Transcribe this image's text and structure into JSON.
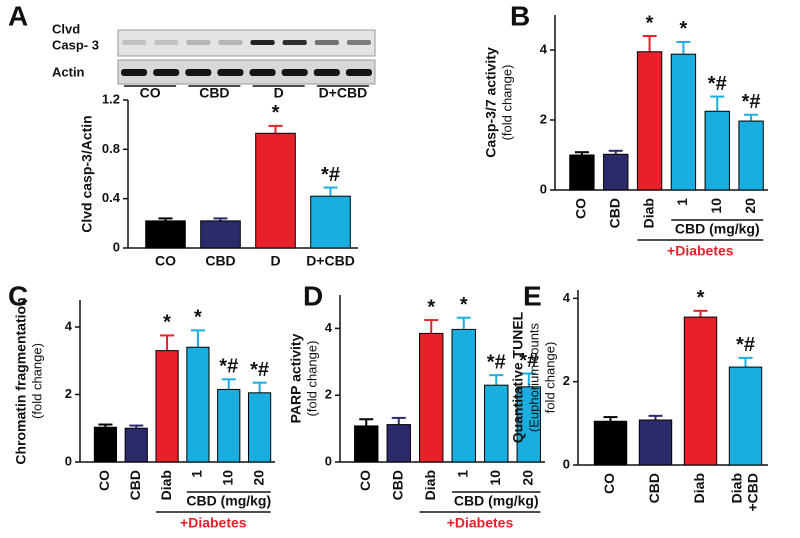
{
  "chart_data": [
    {
      "type": "bar",
      "panel": "A",
      "ylabel": [
        "Clvd casp-3/Actin"
      ],
      "blot": {
        "labels": [
          "Clvd",
          "Casp- 3",
          "Actin"
        ],
        "lanes": [
          "CO",
          "CBD",
          "D",
          "D+CBD"
        ]
      },
      "categories": [
        "CO",
        "CBD",
        "D",
        "D+CBD"
      ],
      "values": [
        0.22,
        0.22,
        0.93,
        0.42
      ],
      "errors": [
        0.02,
        0.02,
        0.06,
        0.07
      ],
      "annotations": [
        null,
        null,
        "*",
        "*#"
      ],
      "colors": [
        "#000000",
        "#2b2a6b",
        "#e8202a",
        "#1aaee0"
      ],
      "ylim": [
        0,
        1.2
      ],
      "yticks": [
        0,
        0.4,
        0.8,
        1.2
      ]
    },
    {
      "type": "bar",
      "panel": "B",
      "ylabel": [
        "Casp-3/7 activity",
        "(fold change)"
      ],
      "categories": [
        "CO",
        "CBD",
        "Diab",
        "1",
        "10",
        "20"
      ],
      "values": [
        1.0,
        1.02,
        3.95,
        3.88,
        2.25,
        1.97
      ],
      "errors": [
        0.08,
        0.1,
        0.45,
        0.35,
        0.42,
        0.18
      ],
      "annotations": [
        null,
        null,
        "*",
        "*",
        "*#",
        "*#"
      ],
      "colors": [
        "#000000",
        "#2b2a6b",
        "#e8202a",
        "#1aaee0",
        "#1aaee0",
        "#1aaee0"
      ],
      "group_label": "CBD (mg/kg)",
      "group_note": "+Diabetes",
      "ylim": [
        0,
        5
      ],
      "yticks": [
        0,
        2,
        4
      ]
    },
    {
      "type": "bar",
      "panel": "C",
      "ylabel": [
        "Chromatin fragmentation",
        "(fold change)"
      ],
      "categories": [
        "CO",
        "CBD",
        "Diab",
        "1",
        "10",
        "20"
      ],
      "values": [
        1.03,
        1.0,
        3.3,
        3.4,
        2.15,
        2.05
      ],
      "errors": [
        0.08,
        0.08,
        0.45,
        0.5,
        0.3,
        0.3
      ],
      "annotations": [
        null,
        null,
        "*",
        "*",
        "*#",
        "*#"
      ],
      "colors": [
        "#000000",
        "#2b2a6b",
        "#e8202a",
        "#1aaee0",
        "#1aaee0",
        "#1aaee0"
      ],
      "group_label": "CBD (mg/kg)",
      "group_note": "+Diabetes",
      "ylim": [
        0,
        4.8
      ],
      "yticks": [
        0,
        2,
        4
      ]
    },
    {
      "type": "bar",
      "panel": "D",
      "ylabel": [
        "PARP activity",
        "(fold change)"
      ],
      "categories": [
        "CO",
        "CBD",
        "Diab",
        "1",
        "10",
        "20"
      ],
      "values": [
        1.08,
        1.12,
        3.85,
        3.97,
        2.3,
        2.25
      ],
      "errors": [
        0.2,
        0.2,
        0.4,
        0.35,
        0.3,
        0.4
      ],
      "annotations": [
        null,
        null,
        "*",
        "*",
        "*#",
        "*#"
      ],
      "colors": [
        "#000000",
        "#2b2a6b",
        "#e8202a",
        "#1aaee0",
        "#1aaee0",
        "#1aaee0"
      ],
      "group_label": "CBD (mg/kg)",
      "group_note": "+Diabetes",
      "ylim": [
        0,
        5
      ],
      "yticks": [
        0,
        2,
        4
      ]
    },
    {
      "type": "bar",
      "panel": "E",
      "ylabel": [
        "Quantitative TUNEL",
        "(Euphorium counts",
        "fold change)"
      ],
      "categories": [
        "CO",
        "CBD",
        "Diab",
        "Diab +CBD"
      ],
      "values": [
        1.05,
        1.08,
        3.55,
        2.35
      ],
      "errors": [
        0.1,
        0.1,
        0.15,
        0.22
      ],
      "annotations": [
        null,
        null,
        "*",
        "*#"
      ],
      "colors": [
        "#000000",
        "#2b2a6b",
        "#e8202a",
        "#1aaee0"
      ],
      "ylim": [
        0,
        4.2
      ],
      "yticks": [
        0,
        2,
        4
      ]
    }
  ]
}
